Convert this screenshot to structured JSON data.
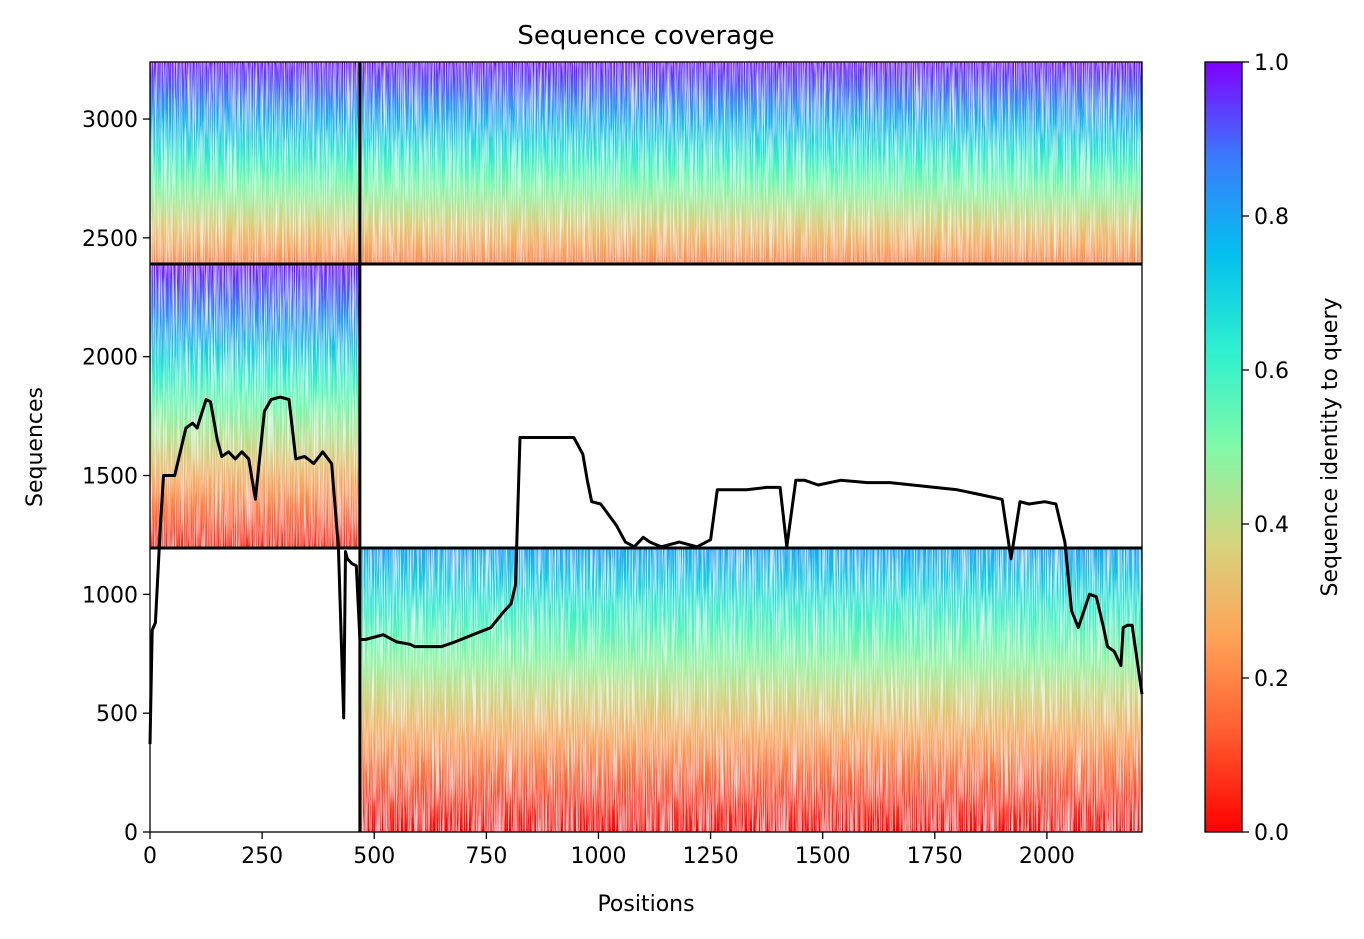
{
  "chart_data": {
    "type": "heatmap",
    "title": "Sequence coverage",
    "xlabel": "Positions",
    "ylabel": "Sequences",
    "xlim": [
      0,
      2212
    ],
    "ylim": [
      0,
      3240
    ],
    "xticks": [
      0,
      250,
      500,
      750,
      1000,
      1250,
      1500,
      1750,
      2000
    ],
    "yticks": [
      0,
      500,
      1000,
      1500,
      2000,
      2500,
      3000
    ],
    "colorbar": {
      "label": "Sequence identity to query",
      "range": [
        0.0,
        1.0
      ],
      "ticks": [
        "0.0",
        "0.2",
        "0.4",
        "0.6",
        "0.8",
        "1.0"
      ],
      "colormap": [
        "#ff0000",
        "#ff5a2e",
        "#ffa256",
        "#d6d47e",
        "#80f9a8",
        "#2ef0cf",
        "#04c0ee",
        "#3a7cfc",
        "#8000ff"
      ]
    },
    "chain_boundaries_x": [
      468
    ],
    "chain_boundaries_y": [
      1195,
      2390
    ],
    "blocks": [
      {
        "x_range": [
          0,
          468
        ],
        "y_range": [
          1195,
          2390
        ],
        "identity_low": 0.05,
        "identity_high": 1.0
      },
      {
        "x_range": [
          468,
          2212
        ],
        "y_range": [
          0,
          1195
        ],
        "identity_low": 0.0,
        "identity_high": 0.8
      },
      {
        "x_range": [
          0,
          468
        ],
        "y_range": [
          2390,
          3240
        ],
        "identity_low": 0.2,
        "identity_high": 1.0
      },
      {
        "x_range": [
          468,
          2212
        ],
        "y_range": [
          2390,
          3240
        ],
        "identity_low": 0.2,
        "identity_high": 1.0
      }
    ],
    "coverage": {
      "x": [
        0,
        5,
        12,
        22,
        30,
        35,
        55,
        80,
        95,
        105,
        115,
        125,
        135,
        150,
        160,
        175,
        190,
        205,
        220,
        235,
        255,
        270,
        290,
        310,
        325,
        345,
        365,
        385,
        405,
        420,
        432,
        436,
        440,
        450,
        460,
        468,
        480,
        520,
        550,
        580,
        590,
        600,
        620,
        650,
        680,
        720,
        760,
        790,
        805,
        815,
        825,
        860,
        900,
        945,
        965,
        975,
        985,
        1005,
        1040,
        1060,
        1080,
        1100,
        1115,
        1140,
        1180,
        1220,
        1250,
        1265,
        1290,
        1330,
        1375,
        1405,
        1420,
        1440,
        1460,
        1490,
        1540,
        1600,
        1650,
        1700,
        1750,
        1800,
        1850,
        1900,
        1920,
        1940,
        1960,
        1995,
        2020,
        2040,
        2055,
        2070,
        2095,
        2110,
        2125,
        2135,
        2150,
        2165,
        2170,
        2180,
        2190,
        2212
      ],
      "y": [
        370,
        850,
        880,
        1250,
        1500,
        1500,
        1500,
        1700,
        1720,
        1700,
        1760,
        1820,
        1810,
        1650,
        1580,
        1600,
        1570,
        1600,
        1570,
        1400,
        1770,
        1820,
        1830,
        1820,
        1570,
        1580,
        1550,
        1600,
        1550,
        1200,
        480,
        1180,
        1150,
        1130,
        1120,
        810,
        810,
        830,
        800,
        790,
        780,
        780,
        780,
        780,
        800,
        830,
        860,
        930,
        960,
        1040,
        1660,
        1660,
        1660,
        1660,
        1590,
        1480,
        1390,
        1380,
        1290,
        1220,
        1200,
        1240,
        1220,
        1200,
        1220,
        1200,
        1230,
        1440,
        1440,
        1440,
        1450,
        1450,
        1200,
        1480,
        1480,
        1460,
        1480,
        1470,
        1470,
        1460,
        1450,
        1440,
        1420,
        1400,
        1150,
        1390,
        1380,
        1390,
        1380,
        1220,
        930,
        860,
        1000,
        990,
        870,
        780,
        760,
        700,
        860,
        870,
        870,
        580
      ]
    }
  }
}
